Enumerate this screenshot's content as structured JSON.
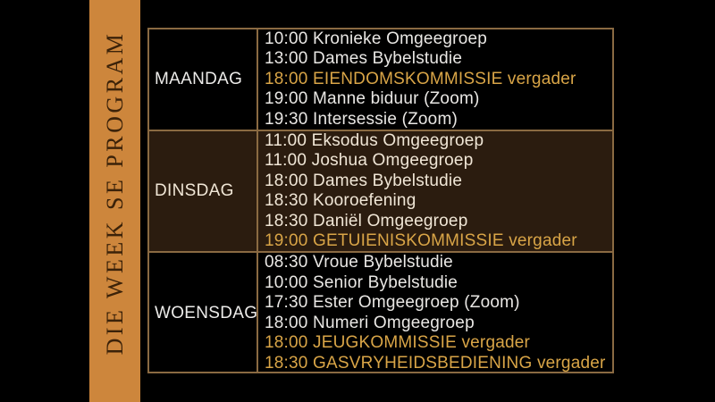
{
  "sidebar": {
    "title": "DIE WEEK SE PROGRAM"
  },
  "colors": {
    "background": "#000000",
    "sidebar_bar": "#cd863c",
    "sidebar_text": "#3b2209",
    "table_border": "#8a6a42",
    "highlight_row_bg": "#2b1c0f",
    "event_text": "#e9e7e4",
    "highlight_row_text": "#f0e6d6",
    "accent_gold": "#d9a547"
  },
  "schedule": {
    "days": [
      {
        "label": "MAANDAG",
        "events": [
          {
            "text": "10:00 Kronieke Omgeegroep",
            "highlight": false
          },
          {
            "text": "13:00 Dames Bybelstudie",
            "highlight": false
          },
          {
            "text": "18:00 EIENDOMSKOMMISSIE vergader",
            "highlight": true
          },
          {
            "text": "19:00 Manne biduur (Zoom)",
            "highlight": false
          },
          {
            "text": "19:30 Intersessie (Zoom)",
            "highlight": false
          }
        ]
      },
      {
        "label": "DINSDAG",
        "events": [
          {
            "text": "11:00 Eksodus Omgeegroep",
            "highlight": false
          },
          {
            "text": "11:00 Joshua Omgeegroep",
            "highlight": false
          },
          {
            "text": "18:00 Dames Bybelstudie",
            "highlight": false
          },
          {
            "text": "18:30 Kooroefening",
            "highlight": false
          },
          {
            "text": "18:30 Daniël Omgeegroep",
            "highlight": false
          },
          {
            "text": "19:00 GETUIENISKOMMISSIE vergader",
            "highlight": true
          }
        ]
      },
      {
        "label": "WOENSDAG",
        "events": [
          {
            "text": "08:30 Vroue Bybelstudie",
            "highlight": false
          },
          {
            "text": "10:00 Senior Bybelstudie",
            "highlight": false
          },
          {
            "text": "17:30 Ester Omgeegroep (Zoom)",
            "highlight": false
          },
          {
            "text": "18:00 Numeri Omgeegroep",
            "highlight": false
          },
          {
            "text": "18:00 JEUGKOMMISSIE vergader",
            "highlight": true
          },
          {
            "text": "18:30 GASVRYHEIDSBEDIENING vergader",
            "highlight": true
          }
        ]
      }
    ]
  }
}
